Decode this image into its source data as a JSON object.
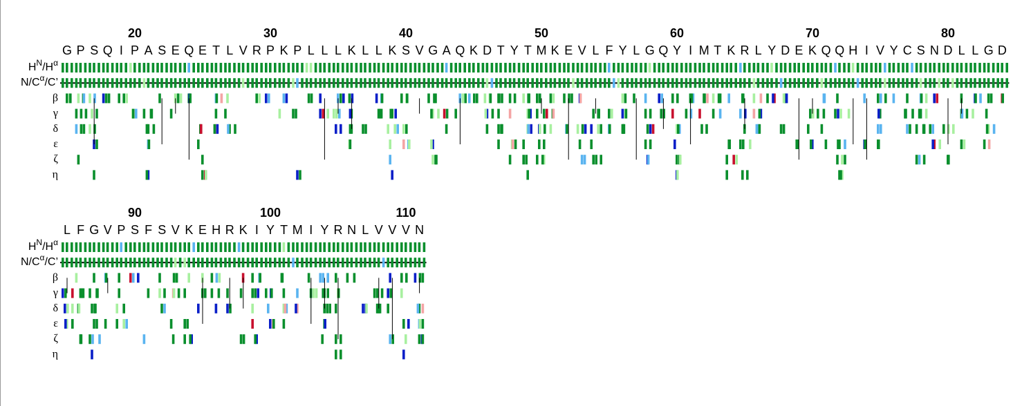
{
  "blocks": [
    {
      "first_residue": 15,
      "ticks": [
        20,
        30,
        40,
        50,
        60,
        70,
        80
      ],
      "sequence": [
        "G",
        "P",
        "S",
        "Q",
        "I",
        "P",
        "A",
        "S",
        "E",
        "Q",
        "E",
        "T",
        "L",
        "V",
        "R",
        "P",
        "K",
        "P",
        "L",
        "L",
        "L",
        "K",
        "L",
        "L",
        "K",
        "S",
        "V",
        "G",
        "A",
        "Q",
        "K",
        "D",
        "T",
        "Y",
        "T",
        "M",
        "K",
        "E",
        "V",
        "L",
        "F",
        "Y",
        "L",
        "G",
        "Q",
        "Y",
        "I",
        "M",
        "T",
        "K",
        "R",
        "L",
        "Y",
        "D",
        "E",
        "K",
        "Q",
        "Q",
        "H",
        "I",
        "V",
        "Y",
        "C",
        "S",
        "N",
        "D",
        "L",
        "L",
        "G",
        "D"
      ]
    },
    {
      "first_residue": 85,
      "ticks": [
        90,
        100,
        110
      ],
      "sequence": [
        "L",
        "F",
        "G",
        "V",
        "P",
        "S",
        "F",
        "S",
        "V",
        "K",
        "E",
        "H",
        "R",
        "K",
        "I",
        "Y",
        "T",
        "M",
        "I",
        "Y",
        "R",
        "N",
        "L",
        "V",
        "V",
        "V",
        "N"
      ]
    }
  ],
  "row_labels": [
    [
      "H",
      "N",
      "/H",
      "α"
    ],
    [
      "N/C",
      "α",
      "/C’"
    ],
    [
      "β"
    ],
    [
      "γ"
    ],
    [
      "δ"
    ],
    [
      "ε"
    ],
    [
      "ζ"
    ],
    [
      "η"
    ]
  ]
}
